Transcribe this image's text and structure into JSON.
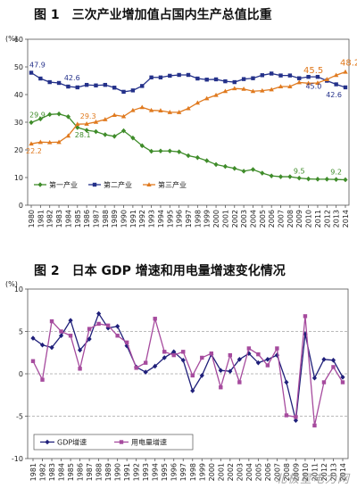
{
  "chart_data": [
    {
      "type": "line",
      "title": "图 1　三次产业增加值占国内生产总值比重",
      "ylabel": "(%)",
      "ylim": [
        0,
        60
      ],
      "yticks": [
        0,
        10,
        20,
        30,
        40,
        50,
        60
      ],
      "grid": false,
      "legend_position": "bottom-left",
      "categories": [
        "1980",
        "1981",
        "1982",
        "1983",
        "1984",
        "1985",
        "1986",
        "1987",
        "1988",
        "1989",
        "1990",
        "1991",
        "1992",
        "1993",
        "1994",
        "1995",
        "1996",
        "1997",
        "1998",
        "1999",
        "2000",
        "2001",
        "2002",
        "2003",
        "2004",
        "2005",
        "2006",
        "2007",
        "2008",
        "2009",
        "2010",
        "2011",
        "2012",
        "2013",
        "2014"
      ],
      "series": [
        {
          "name": "第一产业",
          "color": "#3f8c2a",
          "marker": "diamond",
          "values": [
            29.9,
            31.2,
            32.8,
            33.0,
            32.0,
            28.1,
            27.1,
            26.6,
            25.5,
            24.9,
            26.9,
            24.3,
            21.5,
            19.5,
            19.6,
            19.6,
            19.3,
            17.9,
            17.2,
            16.1,
            14.7,
            14.0,
            13.3,
            12.3,
            12.9,
            11.6,
            10.6,
            10.3,
            10.3,
            9.8,
            9.5,
            9.4,
            9.4,
            9.3,
            9.2
          ]
        },
        {
          "name": "第二产业",
          "color": "#24318a",
          "marker": "square",
          "values": [
            47.9,
            45.8,
            44.5,
            44.2,
            42.9,
            42.6,
            43.5,
            43.3,
            43.5,
            42.5,
            41.0,
            41.5,
            43.1,
            46.2,
            46.2,
            46.8,
            47.1,
            47.1,
            45.8,
            45.4,
            45.5,
            44.8,
            44.5,
            45.6,
            45.9,
            47.0,
            47.6,
            46.9,
            46.9,
            45.9,
            46.4,
            46.4,
            45.0,
            43.7,
            42.6
          ]
        },
        {
          "name": "第三产业",
          "color": "#e07a1f",
          "marker": "triangle",
          "values": [
            22.2,
            22.8,
            22.7,
            22.8,
            25.1,
            29.3,
            29.4,
            30.1,
            31.0,
            32.6,
            32.1,
            34.3,
            35.4,
            34.3,
            34.2,
            33.6,
            33.6,
            35.0,
            37.0,
            38.6,
            39.8,
            41.2,
            42.2,
            42.0,
            41.2,
            41.4,
            41.8,
            42.9,
            42.9,
            44.4,
            44.1,
            44.2,
            45.5,
            47.0,
            48.2
          ]
        }
      ],
      "annotations": [
        {
          "text": "47.9",
          "series": 1,
          "index": 0
        },
        {
          "text": "42.6",
          "series": 1,
          "index": 5
        },
        {
          "text": "29.9",
          "series": 0,
          "index": 0
        },
        {
          "text": "29.3",
          "series": 2,
          "index": 5
        },
        {
          "text": "28.1",
          "series": 0,
          "index": 5
        },
        {
          "text": "22.2",
          "series": 2,
          "index": 0
        },
        {
          "text": "45.5",
          "series": 2,
          "index": 32
        },
        {
          "text": "48.2",
          "series": 2,
          "index": 34
        },
        {
          "text": "45.0",
          "series": 1,
          "index": 32
        },
        {
          "text": "42.6",
          "series": 1,
          "index": 34
        },
        {
          "text": "9.5",
          "series": 0,
          "index": 30
        },
        {
          "text": "9.2",
          "series": 0,
          "index": 34
        }
      ]
    },
    {
      "type": "line",
      "title": "图 2　日本 GDP 增速和用电量增速变化情况",
      "ylabel": "(%)",
      "ylim": [
        -10,
        10
      ],
      "yticks": [
        -10,
        -5,
        0,
        5,
        10
      ],
      "grid": true,
      "legend_position": "bottom-left",
      "categories": [
        "1981",
        "1982",
        "1983",
        "1984",
        "1985",
        "1986",
        "1987",
        "1988",
        "1989",
        "1990",
        "1991",
        "1992",
        "1993",
        "1994",
        "1995",
        "1996",
        "1997",
        "1998",
        "1999",
        "2000",
        "2001",
        "2002",
        "2003",
        "2004",
        "2005",
        "2006",
        "2007",
        "2008",
        "2009",
        "2010",
        "2011",
        "2012",
        "2013",
        "2014"
      ],
      "series": [
        {
          "name": "GDP增速",
          "color": "#1f1f7a",
          "marker": "diamond",
          "values": [
            4.2,
            3.4,
            3.1,
            4.5,
            6.3,
            2.8,
            4.1,
            7.1,
            5.4,
            5.6,
            3.3,
            0.8,
            0.2,
            0.9,
            1.9,
            2.6,
            1.6,
            -2.0,
            -0.2,
            2.3,
            0.4,
            0.3,
            1.7,
            2.4,
            1.3,
            1.7,
            2.2,
            -1.0,
            -5.5,
            4.7,
            -0.5,
            1.7,
            1.6,
            -0.4
          ]
        },
        {
          "name": "用电量增速",
          "color": "#a64b9e",
          "marker": "square",
          "values": [
            1.5,
            -0.7,
            6.2,
            5.0,
            4.5,
            0.6,
            5.3,
            5.9,
            5.7,
            4.5,
            3.7,
            0.7,
            1.3,
            6.5,
            2.6,
            2.2,
            2.6,
            -0.2,
            1.9,
            2.4,
            -1.6,
            2.2,
            -1.0,
            3.0,
            2.3,
            1.0,
            3.0,
            -4.9,
            -5.1,
            6.8,
            -6.1,
            -1.0,
            0.8,
            -1.0
          ]
        }
      ]
    }
  ],
  "watermark": "北极星电力网"
}
